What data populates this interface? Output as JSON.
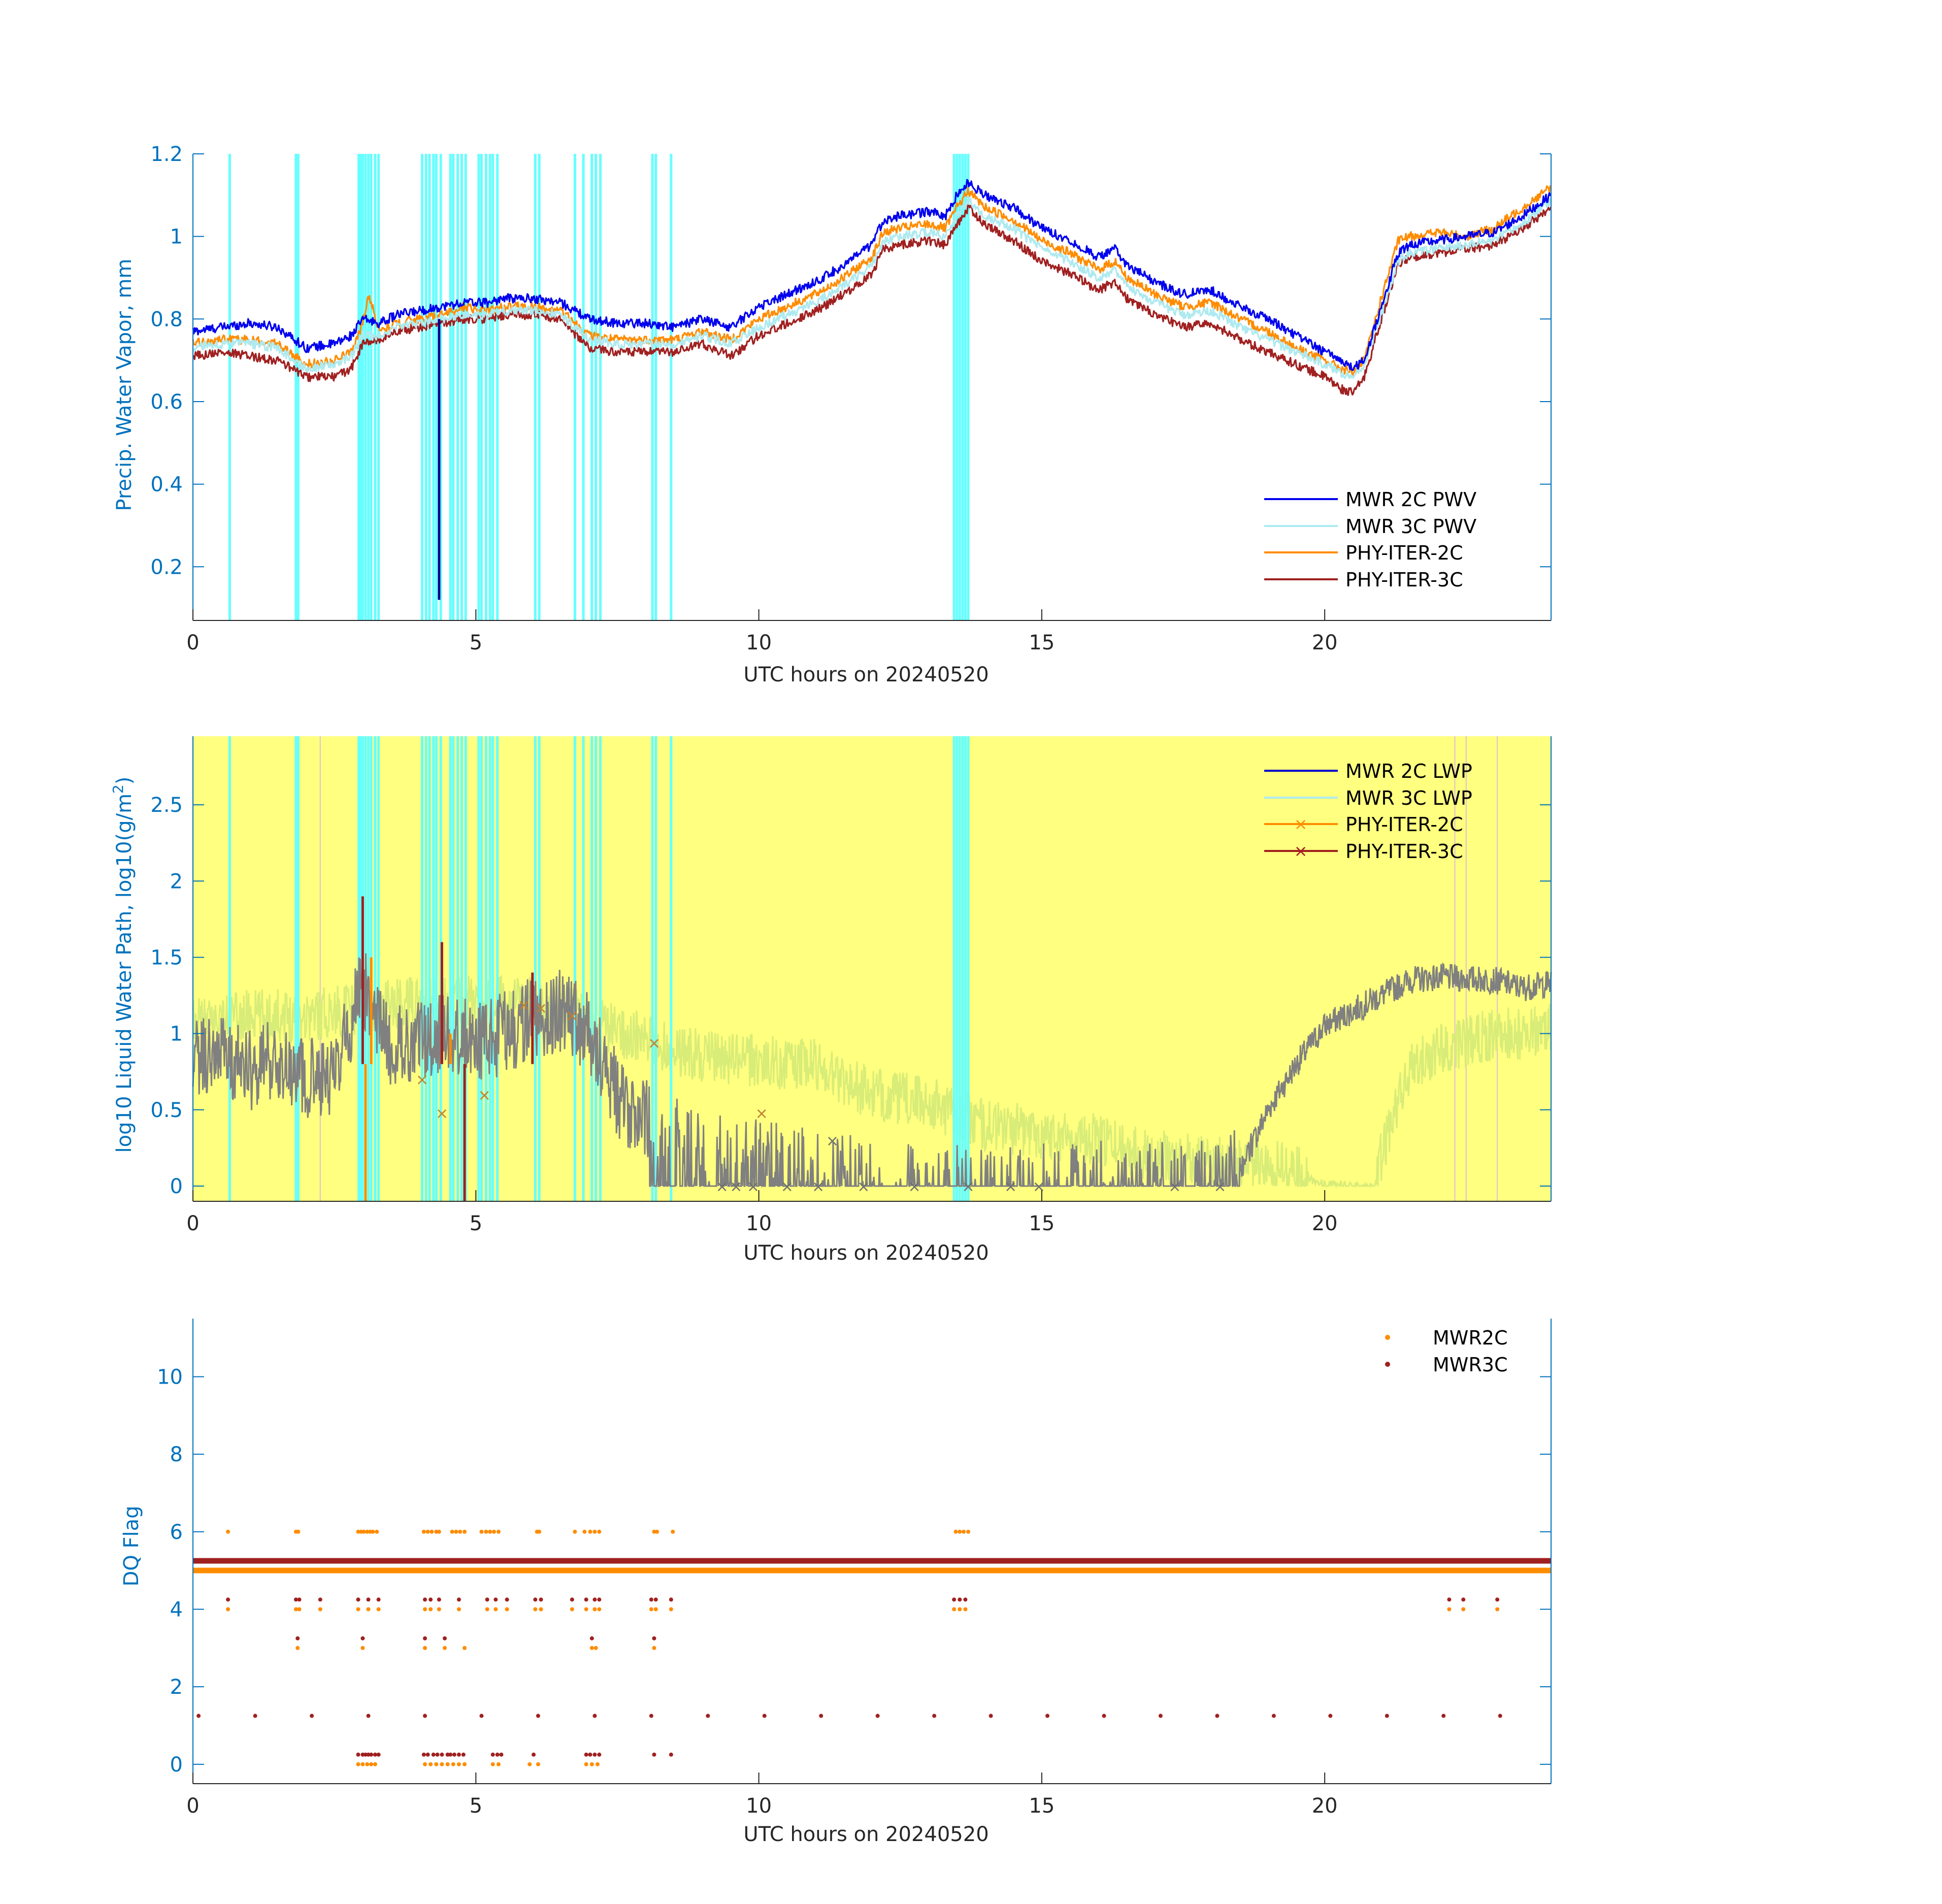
{
  "chart_data": [
    {
      "type": "line",
      "xlabel": "UTC hours on 20240520",
      "ylabel": "Precip. Water Vapor, mm",
      "xlim": [
        0,
        24
      ],
      "ylim": [
        0.07,
        1.2
      ],
      "xticks": [
        0,
        5,
        10,
        15,
        20
      ],
      "yticks": [
        0.2,
        0.4,
        0.6,
        0.8,
        1,
        1.2
      ],
      "ytick_labels": [
        "0.2",
        "0.4",
        "0.6",
        "0.8",
        "1",
        "1.2"
      ],
      "legend_position": "bottom-right",
      "flag_color": "#66ffff",
      "flag_times": [
        0.65,
        1.82,
        1.86,
        2.93,
        2.97,
        3.0,
        3.05,
        3.1,
        3.15,
        3.22,
        3.28,
        4.05,
        4.12,
        4.18,
        4.25,
        4.3,
        4.38,
        4.55,
        4.6,
        4.68,
        4.75,
        4.82,
        5.05,
        5.1,
        5.18,
        5.25,
        5.3,
        5.38,
        6.05,
        6.12,
        6.75,
        6.9,
        7.05,
        7.12,
        7.2,
        8.12,
        8.18,
        8.45,
        13.45,
        13.5,
        13.55,
        13.6,
        13.65,
        13.7
      ],
      "series": [
        {
          "name": "MWR 2C PWV",
          "color": "#0000ee",
          "width": 3.2,
          "x": [
            0,
            0.5,
            1,
            1.5,
            2,
            2.5,
            2.8,
            3.0,
            3.3,
            3.6,
            4.0,
            4.4,
            4.8,
            5.2,
            5.5,
            6.0,
            6.5,
            7.0,
            7.5,
            8.0,
            8.5,
            9.0,
            9.5,
            10.0,
            10.5,
            11.0,
            11.5,
            12.0,
            12.2,
            12.5,
            13.0,
            13.3,
            13.5,
            13.7,
            14.0,
            14.5,
            15.0,
            15.5,
            16.0,
            16.3,
            16.5,
            17.0,
            17.5,
            18.0,
            18.5,
            19.0,
            19.5,
            20.0,
            20.3,
            20.5,
            20.7,
            21.0,
            21.3,
            21.5,
            22.0,
            22.5,
            23.0,
            23.5,
            24.0
          ],
          "y": [
            0.77,
            0.78,
            0.79,
            0.78,
            0.73,
            0.74,
            0.76,
            0.8,
            0.79,
            0.81,
            0.82,
            0.83,
            0.84,
            0.84,
            0.85,
            0.85,
            0.84,
            0.8,
            0.79,
            0.79,
            0.78,
            0.8,
            0.78,
            0.83,
            0.86,
            0.89,
            0.93,
            0.98,
            1.04,
            1.05,
            1.06,
            1.05,
            1.1,
            1.13,
            1.1,
            1.07,
            1.02,
            0.99,
            0.95,
            0.97,
            0.93,
            0.89,
            0.86,
            0.87,
            0.83,
            0.8,
            0.76,
            0.72,
            0.7,
            0.68,
            0.7,
            0.83,
            0.96,
            0.98,
            0.99,
            1.0,
            1.01,
            1.05,
            1.1
          ]
        },
        {
          "name": "MWR 3C PWV",
          "color": "#aeeaf0",
          "width": 3.2,
          "x": [
            0,
            0.5,
            1,
            1.5,
            2,
            2.5,
            2.8,
            3.0,
            3.3,
            3.6,
            4.0,
            4.4,
            4.8,
            5.2,
            5.5,
            6.0,
            6.5,
            7.0,
            7.5,
            8.0,
            8.5,
            9.0,
            9.5,
            10.0,
            10.5,
            11.0,
            11.5,
            12.0,
            12.2,
            12.5,
            13.0,
            13.3,
            13.5,
            13.7,
            14.0,
            14.5,
            15.0,
            15.5,
            16.0,
            16.3,
            16.5,
            17.0,
            17.5,
            18.0,
            18.5,
            19.0,
            19.5,
            20.0,
            20.3,
            20.5,
            20.7,
            21.0,
            21.3,
            21.5,
            22.0,
            22.5,
            23.0,
            23.5,
            24.0
          ],
          "y": [
            0.73,
            0.74,
            0.74,
            0.73,
            0.68,
            0.69,
            0.71,
            0.76,
            0.76,
            0.78,
            0.79,
            0.8,
            0.81,
            0.81,
            0.82,
            0.82,
            0.81,
            0.75,
            0.74,
            0.74,
            0.74,
            0.76,
            0.74,
            0.78,
            0.81,
            0.84,
            0.88,
            0.93,
            0.99,
            1.0,
            1.01,
            1.0,
            1.05,
            1.09,
            1.05,
            1.02,
            0.97,
            0.94,
            0.9,
            0.92,
            0.88,
            0.84,
            0.81,
            0.82,
            0.78,
            0.75,
            0.72,
            0.69,
            0.67,
            0.66,
            0.69,
            0.81,
            0.94,
            0.96,
            0.97,
            0.98,
            0.99,
            1.03,
            1.09
          ]
        },
        {
          "name": "PHY-ITER-2C",
          "color": "#ff8c00",
          "width": 3.2,
          "x": [
            0,
            0.5,
            1,
            1.5,
            2,
            2.5,
            2.8,
            3.0,
            3.1,
            3.3,
            3.6,
            4.0,
            4.4,
            4.8,
            5.2,
            5.5,
            6.0,
            6.5,
            7.0,
            7.5,
            8.0,
            8.5,
            9.0,
            9.5,
            10.0,
            10.5,
            11.0,
            11.5,
            12.0,
            12.2,
            12.5,
            13.0,
            13.3,
            13.5,
            13.7,
            14.0,
            14.5,
            15.0,
            15.5,
            16.0,
            16.3,
            16.5,
            17.0,
            17.5,
            18.0,
            18.5,
            19.0,
            19.5,
            20.0,
            20.3,
            20.5,
            20.7,
            21.0,
            21.3,
            21.5,
            22.0,
            22.5,
            23.0,
            23.5,
            24.0
          ],
          "y": [
            0.74,
            0.75,
            0.75,
            0.74,
            0.69,
            0.7,
            0.72,
            0.79,
            0.86,
            0.77,
            0.79,
            0.8,
            0.81,
            0.83,
            0.82,
            0.83,
            0.83,
            0.82,
            0.76,
            0.75,
            0.75,
            0.75,
            0.77,
            0.75,
            0.8,
            0.83,
            0.86,
            0.9,
            0.95,
            1.01,
            1.02,
            1.03,
            1.02,
            1.07,
            1.11,
            1.07,
            1.04,
            0.99,
            0.96,
            0.92,
            0.94,
            0.9,
            0.86,
            0.83,
            0.84,
            0.8,
            0.77,
            0.73,
            0.7,
            0.68,
            0.67,
            0.7,
            0.85,
            0.99,
            1.0,
            1.01,
            1.0,
            1.02,
            1.07,
            1.12
          ]
        },
        {
          "name": "PHY-ITER-3C",
          "color": "#a02020",
          "width": 3.2,
          "x": [
            0,
            0.5,
            1,
            1.5,
            2,
            2.5,
            2.8,
            3.0,
            3.3,
            3.6,
            4.0,
            4.4,
            4.8,
            5.2,
            5.5,
            6.0,
            6.5,
            7.0,
            7.5,
            8.0,
            8.5,
            9.0,
            9.5,
            10.0,
            10.5,
            11.0,
            11.5,
            12.0,
            12.2,
            12.5,
            13.0,
            13.3,
            13.5,
            13.7,
            14.0,
            14.5,
            15.0,
            15.5,
            16.0,
            16.3,
            16.5,
            17.0,
            17.5,
            18.0,
            18.5,
            19.0,
            19.5,
            20.0,
            20.3,
            20.5,
            20.7,
            21.0,
            21.3,
            21.5,
            22.0,
            22.5,
            23.0,
            23.5,
            24.0
          ],
          "y": [
            0.71,
            0.72,
            0.71,
            0.7,
            0.66,
            0.66,
            0.68,
            0.74,
            0.75,
            0.77,
            0.78,
            0.79,
            0.8,
            0.8,
            0.81,
            0.81,
            0.8,
            0.73,
            0.72,
            0.72,
            0.72,
            0.74,
            0.71,
            0.76,
            0.79,
            0.82,
            0.86,
            0.91,
            0.97,
            0.98,
            0.99,
            0.98,
            1.03,
            1.07,
            1.03,
            0.99,
            0.94,
            0.91,
            0.87,
            0.89,
            0.85,
            0.81,
            0.78,
            0.79,
            0.75,
            0.72,
            0.69,
            0.66,
            0.63,
            0.62,
            0.66,
            0.8,
            0.93,
            0.95,
            0.96,
            0.97,
            0.98,
            1.02,
            1.07
          ]
        }
      ],
      "drop": {
        "x": 4.35,
        "y": [
          0.8,
          0.12
        ],
        "color": "#00008b"
      }
    },
    {
      "type": "line",
      "xlabel": "UTC hours on 20240520",
      "ylabel": "log10 Liquid Water Path, log10(g/m²)",
      "ylabel_main": "log10 Liquid Water Path, log10(g/m",
      "ylabel_sup": "2",
      "ylabel_end": ")",
      "xlim": [
        0,
        24
      ],
      "ylim": [
        -0.1,
        2.95
      ],
      "xticks": [
        0,
        5,
        10,
        15,
        20
      ],
      "yticks": [
        0,
        0.5,
        1,
        1.5,
        2,
        2.5
      ],
      "ytick_labels": [
        "0",
        "0.5",
        "1",
        "1.5",
        "2",
        "2.5"
      ],
      "legend_position": "top-right",
      "background": "#ffff80",
      "series": [
        {
          "name": "MWR 2C LWP",
          "color": "#0000cd"
        },
        {
          "name": "MWR 3C LWP",
          "color": "#aeeaf0"
        },
        {
          "name": "PHY-ITER-2C",
          "color": "#ff8c00",
          "marker": "x"
        },
        {
          "name": "PHY-ITER-3C",
          "color": "#a02020",
          "marker": "x"
        }
      ],
      "gray_trace": {
        "color": "#808080",
        "x": [
          0,
          0.5,
          1,
          1.5,
          2,
          2.5,
          3.0,
          3.5,
          4.0,
          4.5,
          5.0,
          5.5,
          6.0,
          6.5,
          7.0,
          7.5,
          8.0,
          8.5,
          9.0,
          9.5,
          10.0,
          10.5,
          11.0,
          11.5,
          12.0,
          13.0,
          14.0,
          15.0,
          16.0,
          17.0,
          18.0,
          18.5,
          19.0,
          19.5,
          20.0,
          20.5,
          21.0,
          21.5,
          22.0,
          22.5,
          23.0,
          23.5,
          24.0
        ],
        "y": [
          0.8,
          0.9,
          0.75,
          0.85,
          0.7,
          0.75,
          1.3,
          0.9,
          0.95,
          1.0,
          0.95,
          1.0,
          1.1,
          1.15,
          1.0,
          0.6,
          0.4,
          0.3,
          0.2,
          0.15,
          0.15,
          0.1,
          0.1,
          0.05,
          0.0,
          0.0,
          0.0,
          0.0,
          0.0,
          0.0,
          0.0,
          0.1,
          0.5,
          0.8,
          1.05,
          1.15,
          1.25,
          1.35,
          1.37,
          1.36,
          1.35,
          1.3,
          1.33
        ]
      },
      "green_trace": {
        "color": "#d8ec78",
        "x": [
          0,
          1,
          2,
          3,
          4,
          5,
          6,
          7,
          8,
          8.5,
          9,
          10,
          10.5,
          11,
          12,
          13,
          14,
          15,
          16,
          17,
          18,
          19,
          19.5,
          20.0,
          20.5,
          20.9,
          21.0,
          21.3,
          21.5,
          22.0,
          22.5,
          23.0,
          23.5,
          24.0
        ],
        "y": [
          1.05,
          1.12,
          1.12,
          1.17,
          1.2,
          1.22,
          1.2,
          1.1,
          0.95,
          0.9,
          0.85,
          0.82,
          0.8,
          0.8,
          0.6,
          0.55,
          0.4,
          0.35,
          0.3,
          0.2,
          0.15,
          0.15,
          0.1,
          0.0,
          0.0,
          0.0,
          0.2,
          0.55,
          0.75,
          0.9,
          0.95,
          1.0,
          1.0,
          1.05
        ]
      },
      "x_markers": [
        [
          4.05,
          0.7
        ],
        [
          4.4,
          0.48
        ],
        [
          5.15,
          0.6
        ],
        [
          5.85,
          1.19
        ],
        [
          6.15,
          1.17
        ],
        [
          6.7,
          1.12
        ],
        [
          8.15,
          0.94
        ],
        [
          9.35,
          0.0
        ],
        [
          9.6,
          0.0
        ],
        [
          9.9,
          0.0
        ],
        [
          10.05,
          0.48
        ],
        [
          10.5,
          0.0
        ],
        [
          11.05,
          0.0
        ],
        [
          11.3,
          0.3
        ],
        [
          11.85,
          0.0
        ],
        [
          12.75,
          0.0
        ],
        [
          13.7,
          0.0
        ],
        [
          14.45,
          0.0
        ],
        [
          14.95,
          0.0
        ],
        [
          17.35,
          0.0
        ],
        [
          18.15,
          0.0
        ]
      ],
      "spikes": [
        [
          3.0,
          1.9
        ],
        [
          3.15,
          1.5
        ],
        [
          4.4,
          1.6
        ],
        [
          4.55,
          1.0
        ],
        [
          6.0,
          1.4
        ],
        [
          3.05,
          -0.1
        ],
        [
          4.8,
          -0.1
        ]
      ]
    },
    {
      "type": "scatter",
      "xlabel": "UTC hours on 20240520",
      "ylabel": "DQ Flag",
      "xlim": [
        0,
        24
      ],
      "ylim": [
        -0.5,
        11.5
      ],
      "xticks": [
        0,
        5,
        10,
        15,
        20
      ],
      "yticks": [
        0,
        2,
        4,
        6,
        8,
        10
      ],
      "ytick_labels": [
        "0",
        "2",
        "4",
        "6",
        "8",
        "10"
      ],
      "legend_position": "top-right",
      "series": [
        {
          "name": "MWR2C",
          "color": "#ff8c00",
          "baseline": 5,
          "level6_times": [
            0.62,
            1.82,
            1.86,
            2.92,
            2.97,
            3.02,
            3.08,
            3.13,
            3.18,
            3.25,
            4.08,
            4.15,
            4.22,
            4.3,
            4.35,
            4.58,
            4.65,
            4.72,
            4.8,
            5.1,
            5.18,
            5.25,
            5.32,
            5.4,
            6.08,
            6.12,
            6.75,
            6.92,
            7.02,
            7.1,
            7.18,
            8.15,
            8.2,
            8.48,
            13.48,
            13.55,
            13.62,
            13.7
          ],
          "level4_times": [
            0.62,
            1.82,
            1.88,
            2.25,
            2.92,
            3.1,
            3.28,
            4.1,
            4.2,
            4.35,
            4.7,
            5.2,
            5.35,
            5.55,
            6.05,
            6.15,
            6.7,
            6.95,
            7.1,
            7.18,
            8.1,
            8.18,
            8.45,
            13.45,
            13.55,
            13.65,
            22.2,
            22.45,
            23.05
          ],
          "level3_times": [
            1.85,
            3.0,
            4.1,
            4.45,
            4.8,
            7.05,
            7.12,
            8.15
          ],
          "level0_times": [
            2.92,
            3.0,
            3.08,
            3.15,
            3.22,
            4.1,
            4.2,
            4.3,
            4.4,
            4.5,
            4.6,
            4.7,
            4.8,
            5.3,
            5.4,
            5.95,
            6.1,
            6.95,
            7.05,
            7.15
          ]
        },
        {
          "name": "MWR3C",
          "color": "#a02020",
          "baseline": 5.25,
          "level4_times": [
            0.62,
            1.82,
            1.88,
            2.25,
            2.92,
            3.1,
            3.28,
            4.1,
            4.2,
            4.35,
            4.7,
            5.2,
            5.35,
            5.55,
            6.05,
            6.15,
            6.7,
            6.95,
            7.1,
            7.18,
            8.1,
            8.18,
            8.45,
            13.45,
            13.55,
            13.65,
            22.2,
            22.45,
            23.05
          ],
          "level3_times": [
            1.85,
            3.0,
            4.1,
            4.45,
            7.05,
            8.15
          ],
          "level1_times": [
            0.1,
            1.1,
            2.1,
            3.1,
            4.1,
            5.1,
            6.1,
            7.1,
            8.1,
            9.1,
            10.1,
            11.1,
            12.1,
            13.1,
            14.1,
            15.1,
            16.1,
            17.1,
            18.1,
            19.1,
            20.1,
            21.1,
            22.1,
            23.1
          ],
          "level0_times": [
            2.92,
            3.0,
            3.05,
            3.1,
            3.15,
            3.22,
            3.28,
            4.08,
            4.15,
            4.25,
            4.32,
            4.4,
            4.5,
            4.55,
            4.62,
            4.7,
            4.78,
            5.3,
            5.38,
            5.45,
            6.02,
            6.95,
            7.02,
            7.1,
            7.18,
            8.15,
            8.45
          ]
        }
      ]
    }
  ]
}
